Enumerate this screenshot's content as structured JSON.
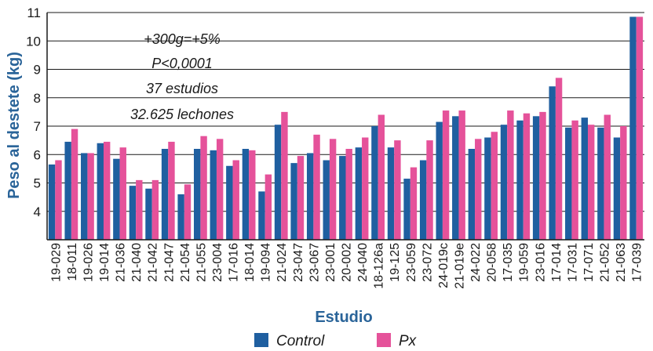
{
  "chart_data": {
    "type": "bar",
    "ylabel": "Peso al destete (kg)",
    "xlabel": "Estudio",
    "ylim": [
      3,
      11
    ],
    "yticks": [
      "4",
      "5",
      "6",
      "7",
      "8",
      "9",
      "10",
      "11"
    ],
    "annotations": [
      "+300g=+5%",
      "P<0,0001",
      "37 estudios",
      "32.625 lechones"
    ],
    "categories": [
      "19-029",
      "18-011",
      "19-026",
      "19-014",
      "21-036",
      "21-040",
      "21-042",
      "21-047",
      "21-054",
      "21-055",
      "23-004",
      "17-016",
      "18-014",
      "19-094",
      "21-024",
      "23-047",
      "23-067",
      "23-001",
      "20-002",
      "24-040",
      "18-126a",
      "19-125",
      "23-059",
      "23-072",
      "24-019c",
      "21-019e",
      "24-022",
      "20-058",
      "17-035",
      "19-059",
      "23-016",
      "17-014",
      "17-031",
      "17-071",
      "21-052",
      "21-063",
      "17-039"
    ],
    "series": [
      {
        "name": "Control",
        "color": "#1f5fa0",
        "values": [
          5.65,
          6.45,
          6.05,
          6.4,
          5.85,
          4.9,
          4.8,
          6.2,
          4.6,
          6.2,
          6.15,
          5.6,
          6.2,
          4.7,
          7.05,
          5.7,
          6.05,
          5.8,
          5.95,
          6.25,
          7.0,
          6.25,
          5.15,
          5.8,
          7.15,
          7.35,
          6.2,
          6.6,
          7.05,
          7.2,
          7.35,
          8.4,
          6.95,
          7.3,
          6.95,
          6.6,
          10.85
        ]
      },
      {
        "name": "Px",
        "color": "#e5529a",
        "values": [
          5.8,
          6.9,
          6.05,
          6.45,
          6.25,
          5.1,
          5.1,
          6.45,
          4.95,
          6.65,
          6.55,
          5.8,
          6.15,
          5.3,
          7.5,
          5.95,
          6.7,
          6.55,
          6.2,
          6.6,
          7.4,
          6.5,
          5.55,
          6.5,
          7.55,
          7.55,
          6.55,
          6.8,
          7.55,
          7.45,
          7.5,
          8.7,
          7.2,
          7.05,
          7.4,
          7.0,
          10.85
        ]
      }
    ],
    "grid": {
      "y": true,
      "x": false
    },
    "legend": "bottom"
  }
}
